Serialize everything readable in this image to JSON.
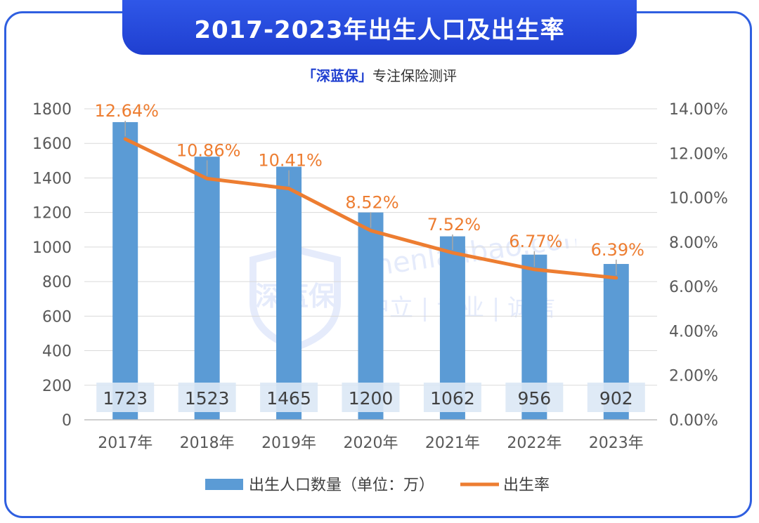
{
  "header": {
    "title": "2017-2023年出生人口及出生率",
    "subtitle_brand": "「深蓝保」",
    "subtitle_rest": "专注保险测评"
  },
  "watermark": {
    "logo_text": "深蓝保",
    "site": "shenlanbao.com",
    "slogan": "中立 | 专业 | 诚信"
  },
  "chart_data": {
    "type": "bar",
    "categories": [
      "2017年",
      "2018年",
      "2019年",
      "2020年",
      "2021年",
      "2022年",
      "2023年"
    ],
    "series": [
      {
        "name": "出生人口数量（单位：万）",
        "kind": "bar",
        "axis": "left",
        "color": "#5b9bd5",
        "values": [
          1723,
          1523,
          1465,
          1200,
          1062,
          956,
          902
        ],
        "labels": [
          "1723",
          "1523",
          "1465",
          "1200",
          "1062",
          "956",
          "902"
        ]
      },
      {
        "name": "出生率",
        "kind": "line",
        "axis": "right",
        "color": "#ed7d31",
        "values": [
          12.64,
          10.86,
          10.41,
          8.52,
          7.52,
          6.77,
          6.39
        ],
        "labels": [
          "12.64%",
          "10.86%",
          "10.41%",
          "8.52%",
          "7.52%",
          "6.77%",
          "6.39%"
        ]
      }
    ],
    "y_left": {
      "ylim": [
        0,
        1800
      ],
      "ticks": [
        "0",
        "200",
        "400",
        "600",
        "800",
        "1000",
        "1200",
        "1400",
        "1600",
        "1800"
      ]
    },
    "y_right": {
      "ylim": [
        0,
        14
      ],
      "ticks": [
        "0.00%",
        "2.00%",
        "4.00%",
        "6.00%",
        "8.00%",
        "10.00%",
        "12.00%",
        "14.00%"
      ]
    },
    "grid": true,
    "legend_position": "bottom"
  }
}
